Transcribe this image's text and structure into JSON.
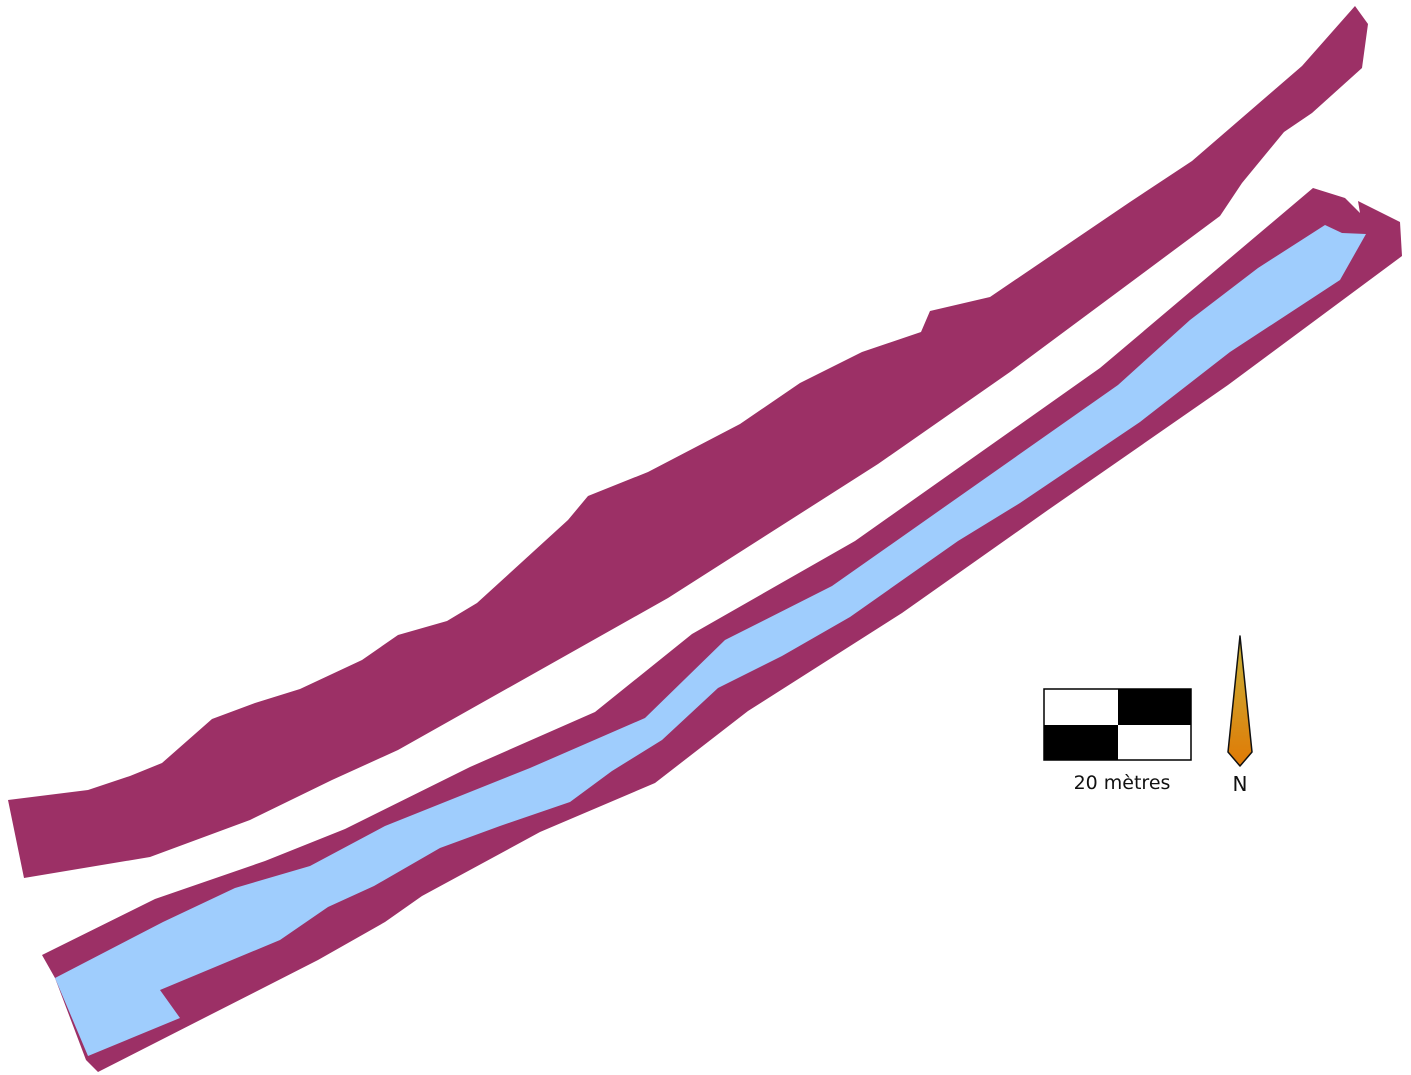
{
  "map": {
    "colors": {
      "buffer_zone": "#9c3066",
      "water_channel": "#9fcdfd",
      "background": "#ffffff",
      "scale_black": "#000000",
      "scale_white": "#ffffff",
      "north_arrow_fill": "#d98a0c"
    },
    "scale_bar": {
      "label": "20 mètres"
    },
    "north_arrow": {
      "label": "N",
      "icon": "north-arrow-icon"
    }
  }
}
